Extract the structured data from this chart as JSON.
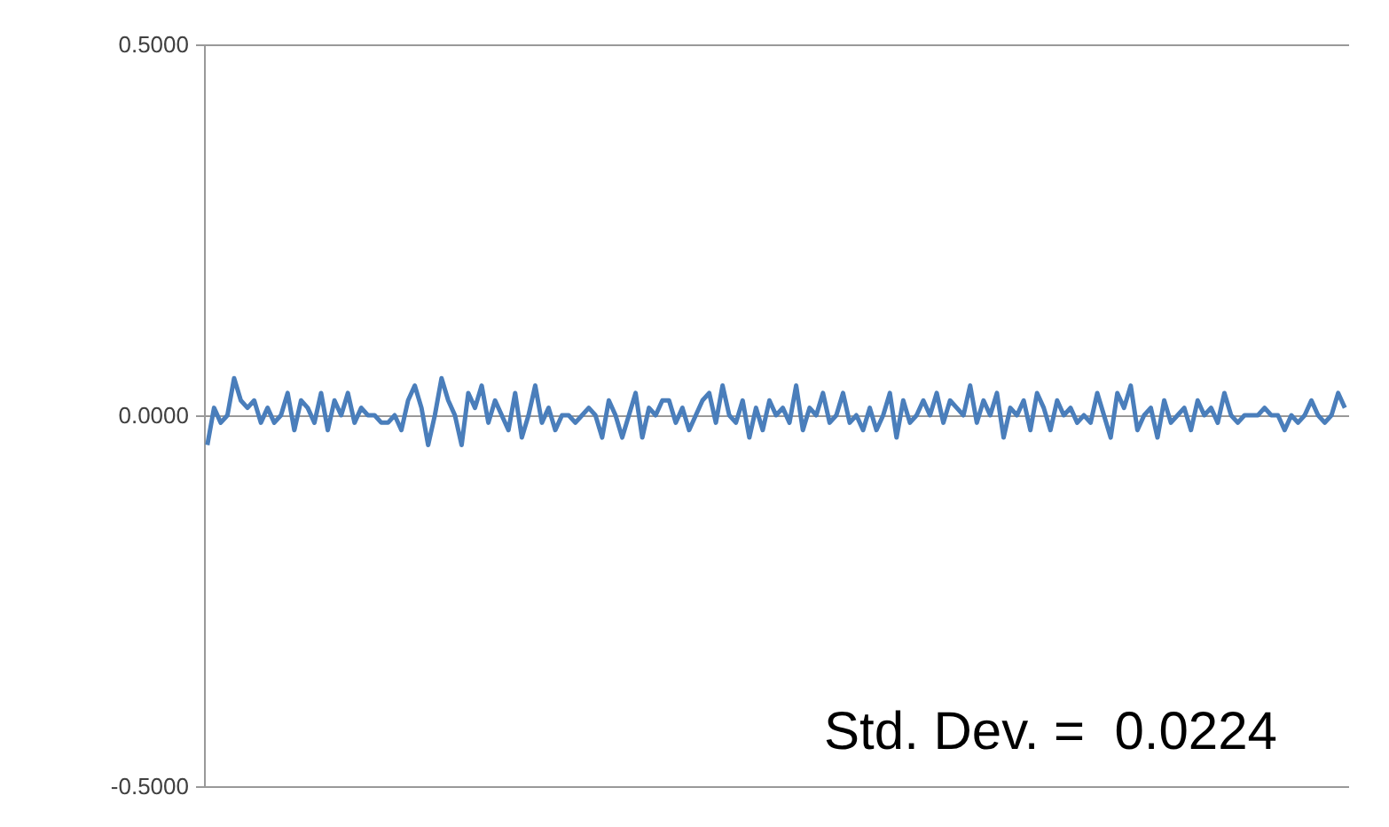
{
  "chart_data": {
    "type": "line",
    "categories": [
      null,
      null,
      null,
      null,
      null,
      null,
      null,
      null,
      null,
      null,
      null,
      null,
      null,
      null,
      null,
      null,
      null,
      null,
      null,
      null,
      null,
      null,
      null,
      null,
      null,
      null,
      null,
      null,
      null,
      null,
      null,
      null,
      null,
      null,
      null,
      null,
      null,
      null,
      null,
      null,
      null,
      null,
      null,
      null,
      null,
      null,
      null,
      null,
      null,
      null,
      null,
      null,
      null,
      null,
      null,
      null,
      null,
      null,
      null,
      null,
      null,
      null,
      null,
      null,
      null,
      null,
      null,
      null,
      null,
      null,
      null,
      null,
      null,
      null,
      null,
      null,
      null,
      null,
      null,
      null,
      null,
      null,
      null,
      null,
      null,
      null,
      null,
      null,
      null,
      null,
      null,
      null,
      null,
      null,
      null,
      null,
      null,
      null,
      null,
      null,
      null,
      null,
      null,
      null,
      null,
      null,
      null,
      null,
      null,
      null,
      null,
      null,
      null,
      null,
      null,
      null,
      null,
      null,
      null,
      null,
      null,
      null,
      null,
      null,
      null,
      null,
      null,
      null,
      null,
      null,
      null,
      null,
      null,
      null,
      null,
      null,
      null,
      null,
      null,
      null,
      null,
      null,
      null,
      null,
      null,
      null,
      null,
      null,
      null,
      null,
      null,
      null,
      null,
      null,
      null,
      null,
      null,
      null,
      null,
      null,
      null,
      null,
      null,
      null,
      null,
      null,
      null,
      null,
      null,
      null,
      null
    ],
    "series": [
      {
        "color": "#4a7ebb",
        "values": [
          -0.04,
          0.01,
          -0.01,
          0.0,
          0.05,
          0.02,
          0.01,
          0.02,
          -0.01,
          0.01,
          -0.01,
          0.0,
          0.03,
          -0.02,
          0.02,
          0.01,
          -0.01,
          0.03,
          -0.02,
          0.02,
          0.0,
          0.03,
          -0.01,
          0.01,
          0.0,
          0.0,
          -0.01,
          -0.01,
          0.0,
          -0.02,
          0.02,
          0.04,
          0.01,
          -0.04,
          0.0,
          0.05,
          0.02,
          0.0,
          -0.04,
          0.03,
          0.01,
          0.04,
          -0.01,
          0.02,
          0.0,
          -0.02,
          0.03,
          -0.03,
          0.0,
          0.04,
          -0.01,
          0.01,
          -0.02,
          0.0,
          0.0,
          -0.01,
          0.0,
          0.01,
          0.0,
          -0.03,
          0.02,
          0.0,
          -0.03,
          0.0,
          0.03,
          -0.03,
          0.01,
          0.0,
          0.02,
          0.02,
          -0.01,
          0.01,
          -0.02,
          0.0,
          0.02,
          0.03,
          -0.01,
          0.04,
          0.0,
          -0.01,
          0.02,
          -0.03,
          0.01,
          -0.02,
          0.02,
          0.0,
          0.01,
          -0.01,
          0.04,
          -0.02,
          0.01,
          0.0,
          0.03,
          -0.01,
          0.0,
          0.03,
          -0.01,
          0.0,
          -0.02,
          0.01,
          -0.02,
          0.0,
          0.03,
          -0.03,
          0.02,
          -0.01,
          0.0,
          0.02,
          0.0,
          0.03,
          -0.01,
          0.02,
          0.01,
          0.0,
          0.04,
          -0.01,
          0.02,
          0.0,
          0.03,
          -0.03,
          0.01,
          0.0,
          0.02,
          -0.02,
          0.03,
          0.01,
          -0.02,
          0.02,
          0.0,
          0.01,
          -0.01,
          0.0,
          -0.01,
          0.03,
          0.0,
          -0.03,
          0.03,
          0.01,
          0.04,
          -0.02,
          0.0,
          0.01,
          -0.03,
          0.02,
          -0.01,
          0.0,
          0.01,
          -0.02,
          0.02,
          0.0,
          0.01,
          -0.01,
          0.03,
          0.0,
          -0.01,
          0.0,
          0.0,
          0.0,
          0.01,
          0.0,
          0.0,
          -0.02,
          0.0,
          -0.01,
          0.0,
          0.02,
          0.0,
          -0.01,
          0.0,
          0.03,
          0.01
        ]
      }
    ],
    "ylim": [
      -0.5,
      0.5
    ],
    "yticks": [
      {
        "value": -0.5,
        "label": "-0.5000"
      },
      {
        "value": 0,
        "label": "0.0000"
      },
      {
        "value": 0.5,
        "label": "0.5000"
      }
    ],
    "grid": "y",
    "marker": "none",
    "line_style": "solid",
    "annotations": [
      "Std. Dev. =  0.0224"
    ]
  }
}
